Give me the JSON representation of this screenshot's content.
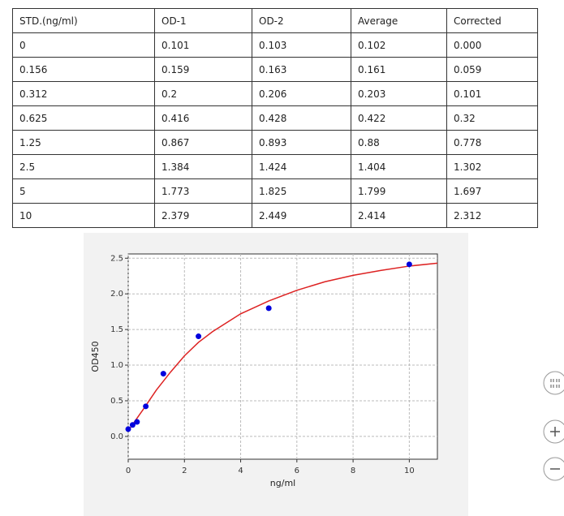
{
  "table": {
    "header": [
      "STD.(ng/ml)",
      "OD-1",
      "OD-2",
      "Average",
      "Corrected"
    ],
    "rows": [
      [
        "0",
        "0.101",
        "0.103",
        "0.102",
        "0.000"
      ],
      [
        "0.156",
        "0.159",
        "0.163",
        "0.161",
        "0.059"
      ],
      [
        "0.312",
        "0.2",
        "0.206",
        "0.203",
        "0.101"
      ],
      [
        "0.625",
        "0.416",
        "0.428",
        "0.422",
        "0.32"
      ],
      [
        "1.25",
        "0.867",
        "0.893",
        "0.88",
        "0.778"
      ],
      [
        "2.5",
        "1.384",
        "1.424",
        "1.404",
        "1.302"
      ],
      [
        "5",
        "1.773",
        "1.825",
        "1.799",
        "1.697"
      ],
      [
        "10",
        "2.379",
        "2.449",
        "2.414",
        "2.312"
      ]
    ]
  },
  "chart_data": {
    "type": "scatter",
    "x_label": "ng/ml",
    "y_label": "OD450",
    "x": [
      0,
      0.156,
      0.312,
      0.625,
      1.25,
      2.5,
      5,
      10
    ],
    "values": [
      0.102,
      0.161,
      0.203,
      0.422,
      0.88,
      1.404,
      1.799,
      2.414
    ],
    "color": "#0000dd",
    "fit": {
      "x": [
        0,
        0.25,
        0.5,
        1,
        1.5,
        2,
        2.5,
        3,
        4,
        5,
        6,
        7,
        8,
        9,
        10,
        11
      ],
      "values": [
        0.08,
        0.22,
        0.36,
        0.65,
        0.9,
        1.13,
        1.32,
        1.47,
        1.72,
        1.9,
        2.05,
        2.17,
        2.26,
        2.33,
        2.39,
        2.43
      ],
      "color": "#dd2222"
    },
    "xlim": [
      0,
      11
    ],
    "ylim": [
      -0.32,
      2.56
    ],
    "xticks": [
      0,
      2,
      4,
      6,
      8,
      10
    ],
    "yticks": [
      {
        "value": 0,
        "label": "0.0"
      },
      0.5,
      {
        "value": 1,
        "label": "1.0"
      },
      1.5,
      {
        "value": 2,
        "label": "2.0"
      },
      2.5
    ],
    "grid": true
  }
}
